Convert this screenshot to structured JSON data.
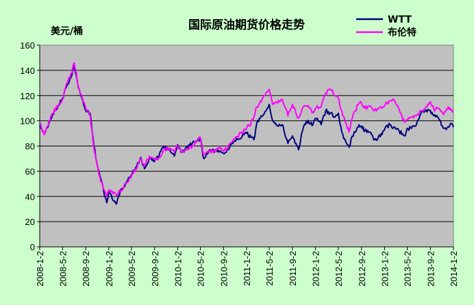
{
  "chart_data": {
    "type": "line",
    "title": "国际原油期货价格走势",
    "ylabel": "美元/桶",
    "xlabel": "",
    "ylim": [
      0,
      160
    ],
    "yticks": [
      "0",
      "20",
      "40",
      "60",
      "80",
      "100",
      "120",
      "140",
      "160"
    ],
    "xticks": [
      "2008-1-2",
      "2008-5-2",
      "2008-9-2",
      "2009-1-2",
      "2009-5-2",
      "2009-9-2",
      "2010-1-2",
      "2010-5-2",
      "2010-9-2",
      "2011-1-2",
      "2011-5-2",
      "2011-9-2",
      "2012-1-2",
      "2012-5-2",
      "2012-9-2",
      "2013-1-2",
      "2013-5-2",
      "2013-9-2",
      "2014-1-2"
    ],
    "grid": true,
    "legend_position": "top-right",
    "background_color": "#ccffcc",
    "plot_background_color": "#c0c0c0",
    "series": [
      {
        "name": "WTT",
        "color": "#000080",
        "points": [
          [
            "2008-1-2",
            96
          ],
          [
            "2008-1-25",
            90
          ],
          [
            "2008-2-15",
            95
          ],
          [
            "2008-3-10",
            105
          ],
          [
            "2008-4-10",
            112
          ],
          [
            "2008-5-2",
            118
          ],
          [
            "2008-5-25",
            128
          ],
          [
            "2008-6-20",
            136
          ],
          [
            "2008-7-3",
            145
          ],
          [
            "2008-7-25",
            126
          ],
          [
            "2008-8-20",
            114
          ],
          [
            "2008-9-2",
            108
          ],
          [
            "2008-9-25",
            106
          ],
          [
            "2008-10-15",
            80
          ],
          [
            "2008-11-10",
            60
          ],
          [
            "2008-12-5",
            45
          ],
          [
            "2008-12-22",
            35
          ],
          [
            "2009-1-2",
            44
          ],
          [
            "2009-1-20",
            38
          ],
          [
            "2009-2-12",
            34
          ],
          [
            "2009-3-10",
            46
          ],
          [
            "2009-4-1",
            50
          ],
          [
            "2009-5-2",
            57
          ],
          [
            "2009-5-25",
            63
          ],
          [
            "2009-6-20",
            71
          ],
          [
            "2009-7-10",
            62
          ],
          [
            "2009-8-5",
            70
          ],
          [
            "2009-9-2",
            68
          ],
          [
            "2009-9-25",
            72
          ],
          [
            "2009-10-20",
            80
          ],
          [
            "2009-11-20",
            77
          ],
          [
            "2009-12-15",
            72
          ],
          [
            "2010-1-2",
            81
          ],
          [
            "2010-1-25",
            75
          ],
          [
            "2010-2-20",
            79
          ],
          [
            "2010-3-20",
            82
          ],
          [
            "2010-4-15",
            84
          ],
          [
            "2010-5-2",
            86
          ],
          [
            "2010-5-20",
            70
          ],
          [
            "2010-6-20",
            77
          ],
          [
            "2010-7-20",
            76
          ],
          [
            "2010-8-15",
            76
          ],
          [
            "2010-9-2",
            74
          ],
          [
            "2010-9-25",
            77
          ],
          [
            "2010-10-15",
            82
          ],
          [
            "2010-11-10",
            86
          ],
          [
            "2010-12-10",
            88
          ],
          [
            "2011-1-2",
            90
          ],
          [
            "2011-1-25",
            87
          ],
          [
            "2011-2-10",
            85
          ],
          [
            "2011-2-25",
            98
          ],
          [
            "2011-3-20",
            104
          ],
          [
            "2011-4-15",
            108
          ],
          [
            "2011-5-2",
            113
          ],
          [
            "2011-5-20",
            100
          ],
          [
            "2011-6-15",
            96
          ],
          [
            "2011-7-10",
            97
          ],
          [
            "2011-8-9",
            82
          ],
          [
            "2011-8-25",
            86
          ],
          [
            "2011-9-2",
            88
          ],
          [
            "2011-9-25",
            80
          ],
          [
            "2011-10-4",
            77
          ],
          [
            "2011-10-25",
            92
          ],
          [
            "2011-11-15",
            100
          ],
          [
            "2011-12-20",
            97
          ],
          [
            "2012-1-2",
            102
          ],
          [
            "2012-2-1",
            97
          ],
          [
            "2012-2-25",
            108
          ],
          [
            "2012-3-20",
            106
          ],
          [
            "2012-4-15",
            103
          ],
          [
            "2012-5-2",
            106
          ],
          [
            "2012-5-20",
            91
          ],
          [
            "2012-6-15",
            82
          ],
          [
            "2012-6-28",
            79
          ],
          [
            "2012-7-15",
            88
          ],
          [
            "2012-8-15",
            95
          ],
          [
            "2012-9-2",
            96
          ],
          [
            "2012-9-20",
            92
          ],
          [
            "2012-10-15",
            91
          ],
          [
            "2012-11-10",
            85
          ],
          [
            "2012-12-20",
            89
          ],
          [
            "2013-1-2",
            93
          ],
          [
            "2013-1-30",
            97
          ],
          [
            "2013-2-20",
            95
          ],
          [
            "2013-3-20",
            92
          ],
          [
            "2013-4-18",
            88
          ],
          [
            "2013-5-2",
            94
          ],
          [
            "2013-5-25",
            94
          ],
          [
            "2013-6-20",
            97
          ],
          [
            "2013-7-19",
            108
          ],
          [
            "2013-8-15",
            107
          ],
          [
            "2013-9-2",
            108
          ],
          [
            "2013-9-20",
            104
          ],
          [
            "2013-10-15",
            102
          ],
          [
            "2013-11-10",
            94
          ],
          [
            "2013-11-25",
            93
          ],
          [
            "2013-12-15",
            97
          ],
          [
            "2014-1-2",
            95
          ]
        ]
      },
      {
        "name": "布伦特",
        "color": "#ff00ff",
        "points": [
          [
            "2008-1-2",
            98
          ],
          [
            "2008-1-25",
            89
          ],
          [
            "2008-2-15",
            96
          ],
          [
            "2008-3-10",
            106
          ],
          [
            "2008-4-10",
            113
          ],
          [
            "2008-5-2",
            117
          ],
          [
            "2008-5-25",
            130
          ],
          [
            "2008-6-20",
            138
          ],
          [
            "2008-7-3",
            146
          ],
          [
            "2008-7-25",
            127
          ],
          [
            "2008-8-20",
            115
          ],
          [
            "2008-9-2",
            110
          ],
          [
            "2008-9-25",
            104
          ],
          [
            "2008-10-15",
            78
          ],
          [
            "2008-11-10",
            58
          ],
          [
            "2008-12-5",
            46
          ],
          [
            "2008-12-22",
            40
          ],
          [
            "2009-1-2",
            45
          ],
          [
            "2009-1-20",
            44
          ],
          [
            "2009-2-12",
            41
          ],
          [
            "2009-3-10",
            45
          ],
          [
            "2009-4-1",
            50
          ],
          [
            "2009-5-2",
            56
          ],
          [
            "2009-5-25",
            62
          ],
          [
            "2009-6-20",
            70
          ],
          [
            "2009-7-10",
            64
          ],
          [
            "2009-8-5",
            72
          ],
          [
            "2009-9-2",
            69
          ],
          [
            "2009-9-25",
            71
          ],
          [
            "2009-10-20",
            77
          ],
          [
            "2009-11-20",
            78
          ],
          [
            "2009-12-15",
            75
          ],
          [
            "2010-1-2",
            80
          ],
          [
            "2010-1-25",
            75
          ],
          [
            "2010-2-20",
            77
          ],
          [
            "2010-3-20",
            80
          ],
          [
            "2010-4-15",
            84
          ],
          [
            "2010-5-2",
            87
          ],
          [
            "2010-5-20",
            73
          ],
          [
            "2010-6-20",
            76
          ],
          [
            "2010-7-20",
            76
          ],
          [
            "2010-8-15",
            78
          ],
          [
            "2010-9-2",
            76
          ],
          [
            "2010-9-25",
            79
          ],
          [
            "2010-10-15",
            83
          ],
          [
            "2010-11-10",
            87
          ],
          [
            "2010-12-10",
            91
          ],
          [
            "2011-1-2",
            94
          ],
          [
            "2011-1-25",
            98
          ],
          [
            "2011-2-10",
            103
          ],
          [
            "2011-2-25",
            111
          ],
          [
            "2011-3-20",
            115
          ],
          [
            "2011-4-15",
            122
          ],
          [
            "2011-5-2",
            125
          ],
          [
            "2011-5-20",
            113
          ],
          [
            "2011-6-15",
            114
          ],
          [
            "2011-7-10",
            117
          ],
          [
            "2011-8-9",
            104
          ],
          [
            "2011-8-25",
            110
          ],
          [
            "2011-9-2",
            113
          ],
          [
            "2011-9-25",
            104
          ],
          [
            "2011-10-4",
            102
          ],
          [
            "2011-10-25",
            110
          ],
          [
            "2011-11-15",
            112
          ],
          [
            "2011-12-20",
            107
          ],
          [
            "2012-1-2",
            110
          ],
          [
            "2012-2-1",
            111
          ],
          [
            "2012-2-25",
            122
          ],
          [
            "2012-3-20",
            125
          ],
          [
            "2012-4-15",
            120
          ],
          [
            "2012-5-2",
            118
          ],
          [
            "2012-5-20",
            108
          ],
          [
            "2012-6-15",
            97
          ],
          [
            "2012-6-28",
            91
          ],
          [
            "2012-7-15",
            102
          ],
          [
            "2012-8-15",
            113
          ],
          [
            "2012-9-2",
            114
          ],
          [
            "2012-9-20",
            110
          ],
          [
            "2012-10-15",
            112
          ],
          [
            "2012-11-10",
            108
          ],
          [
            "2012-12-20",
            110
          ],
          [
            "2013-1-2",
            112
          ],
          [
            "2013-1-30",
            116
          ],
          [
            "2013-2-20",
            117
          ],
          [
            "2013-3-20",
            109
          ],
          [
            "2013-4-18",
            99
          ],
          [
            "2013-5-2",
            101
          ],
          [
            "2013-5-25",
            103
          ],
          [
            "2013-6-20",
            104
          ],
          [
            "2013-7-19",
            108
          ],
          [
            "2013-8-15",
            111
          ],
          [
            "2013-9-2",
            115
          ],
          [
            "2013-9-20",
            109
          ],
          [
            "2013-10-15",
            110
          ],
          [
            "2013-11-10",
            105
          ],
          [
            "2013-11-25",
            109
          ],
          [
            "2013-12-15",
            110
          ],
          [
            "2014-1-2",
            107
          ]
        ]
      }
    ]
  }
}
